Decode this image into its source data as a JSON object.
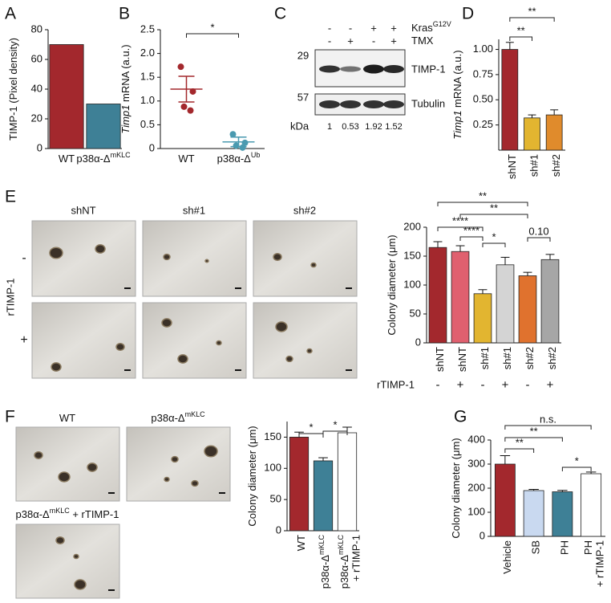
{
  "panels": [
    "A",
    "B",
    "C",
    "D",
    "E",
    "F",
    "G"
  ],
  "blot": {
    "rows": [
      {
        "label": "Kras",
        "sup": "G12V",
        "signs": [
          "-",
          "-",
          "+",
          "+"
        ]
      },
      {
        "label": "TMX",
        "signs": [
          "-",
          "+",
          "-",
          "+"
        ]
      }
    ],
    "markers": [
      29,
      57
    ],
    "bands": [
      "TIMP-1",
      "Tubulin"
    ],
    "unit": "kDa",
    "quantification": [
      1,
      0.53,
      1.92,
      1.52
    ]
  },
  "micrographs": {
    "E": {
      "columns": [
        "shNT",
        "sh#1",
        "sh#2"
      ],
      "row_title": "rTIMP-1",
      "rows": [
        "-",
        "+"
      ]
    },
    "F": [
      {
        "text": "WT"
      },
      {
        "text": "p38α-Δ",
        "sup": "mKLC"
      },
      {
        "text": "p38α-Δ",
        "sup": "mKLC",
        "after": " + rTIMP-1"
      }
    ]
  },
  "chart_data": [
    {
      "type": "bar",
      "y_label": "TIMP-1 (Pixel density)",
      "categories": [
        "WT",
        "p38α-Δ"
      ],
      "category_sup": [
        null,
        "mKLC"
      ],
      "values": [
        70,
        30
      ],
      "colors": [
        "#a3282d",
        "#3e8096"
      ],
      "ylim": [
        0,
        80
      ],
      "yticks": [
        0,
        20,
        40,
        60,
        80
      ]
    },
    {
      "type": "dot",
      "y_label_italic": "Timp1",
      "y_label": " mRNA (a.u.)",
      "categories": [
        "WT",
        "p38α-Δ"
      ],
      "category_sup": [
        null,
        "Ub"
      ],
      "points": [
        [
          1.72,
          1.2,
          0.88,
          0.8
        ],
        [
          0.3,
          0.12,
          0.06,
          0.02
        ]
      ],
      "means": [
        1.25,
        0.14
      ],
      "errors": [
        0.27,
        0.1
      ],
      "colors": [
        "#a3282d",
        "#4a9ab0"
      ],
      "ylim": [
        0,
        2.5
      ],
      "yticks": [
        0,
        0.5,
        {
          "value": 1,
          "label": "1.0"
        },
        1.5,
        {
          "value": 2,
          "label": "2.0"
        },
        2.5
      ],
      "brackets": [
        {
          "text": "*",
          "between": [
            0,
            1
          ]
        }
      ]
    },
    {
      "type": "bar",
      "y_label_italic": "Timp1",
      "y_label": " mRNA (a.u.)",
      "categories": [
        "shNT",
        "sh#1",
        "sh#2"
      ],
      "values": [
        1.0,
        0.32,
        0.35
      ],
      "errors": [
        0.07,
        0.03,
        0.05
      ],
      "colors": [
        "#a3282d",
        "#e2b530",
        "#e08b2c"
      ],
      "ylim": [
        0,
        1.1
      ],
      "yticks": [
        0.25,
        {
          "value": 0.5,
          "label": "0.50"
        },
        0.75,
        {
          "value": 1,
          "label": "1.00"
        }
      ],
      "brackets": [
        {
          "text": "**",
          "between": [
            0,
            2
          ]
        },
        {
          "text": "**",
          "between": [
            0,
            1
          ]
        }
      ]
    },
    {
      "type": "bar",
      "y_label": "Colony diameter (μm)",
      "categories": [
        "shNT",
        "shNT",
        "sh#1",
        "sh#1",
        "sh#2",
        "sh#2"
      ],
      "x_row_label": "rTIMP-1",
      "x_row": [
        "-",
        "+",
        "-",
        "+",
        "-",
        "+"
      ],
      "values": [
        165,
        158,
        85,
        135,
        116,
        144
      ],
      "errors": [
        10,
        10,
        7,
        13,
        6,
        9
      ],
      "colors": [
        "#a3282d",
        "#e0606f",
        "#e2b530",
        "#d4d4d4",
        "#e0722e",
        "#a6a6a6"
      ],
      "ylim": [
        0,
        200
      ],
      "yticks": [
        0,
        50,
        100,
        150,
        200
      ],
      "brackets": [
        {
          "text": "**",
          "between": [
            0,
            4
          ]
        },
        {
          "text": "**",
          "between": [
            1,
            4
          ]
        },
        {
          "text": "****",
          "between": [
            0,
            2
          ]
        },
        {
          "text": "****",
          "between": [
            1,
            2
          ]
        },
        {
          "text": "*",
          "between": [
            2,
            3
          ]
        },
        {
          "text": "0.10",
          "between": [
            4,
            5
          ]
        }
      ]
    },
    {
      "type": "bar",
      "y_label": "Colony diameter (μm)",
      "categories": [
        "WT",
        "p38α-Δ",
        "p38α-Δ"
      ],
      "category_sup": [
        null,
        "mKLC",
        "mKLC"
      ],
      "category_line2": [
        null,
        null,
        "+ rTIMP-1"
      ],
      "values": [
        150,
        112,
        157
      ],
      "errors": [
        8,
        5,
        9
      ],
      "colors": [
        "#a3282d",
        "#3e8096",
        "#ffffff"
      ],
      "ylim": [
        0,
        175
      ],
      "yticks": [
        0,
        50,
        100,
        150
      ],
      "brackets": [
        {
          "text": "*",
          "between": [
            0,
            1
          ]
        },
        {
          "text": "*",
          "between": [
            1,
            2
          ]
        }
      ]
    },
    {
      "type": "bar",
      "y_label": "Colony diameter (μm)",
      "categories": [
        "Vehicle",
        "SB",
        "PH",
        "PH"
      ],
      "category_line2": [
        null,
        null,
        null,
        "+ rTIMP-1"
      ],
      "values": [
        300,
        190,
        185,
        260
      ],
      "errors": [
        35,
        5,
        6,
        7
      ],
      "colors": [
        "#a3282d",
        "#c9d9f0",
        "#3e8096",
        "#ffffff"
      ],
      "ylim": [
        0,
        400
      ],
      "yticks": [
        0,
        100,
        200,
        300,
        400
      ],
      "brackets": [
        {
          "text": "n.s.",
          "between": [
            0,
            3
          ]
        },
        {
          "text": "**",
          "between": [
            0,
            2
          ]
        },
        {
          "text": "**",
          "between": [
            0,
            1
          ]
        },
        {
          "text": "*",
          "between": [
            2,
            3
          ]
        }
      ]
    }
  ]
}
